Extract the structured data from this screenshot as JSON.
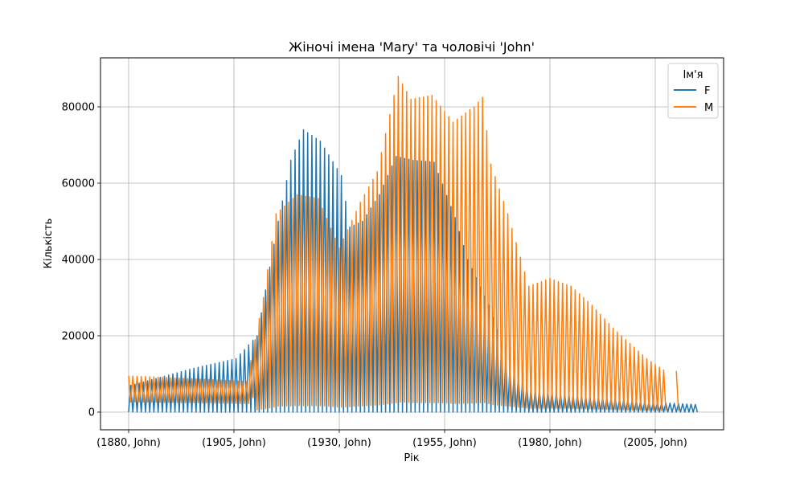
{
  "chart_data": {
    "type": "line",
    "title": "Жіночі імена 'Mary' та чоловічі 'John'",
    "xlabel": "Рік",
    "ylabel": "Кількість",
    "grid": true,
    "legend": {
      "title": "Ім'я",
      "placement": "top-right"
    },
    "x_tick_labels": [
      "(1880, John)",
      "(1905, John)",
      "(1930, John)",
      "(1955, John)",
      "(1980, John)",
      "(2005, John)"
    ],
    "x_tick_years": [
      1880,
      1905,
      1930,
      1955,
      1980,
      2005
    ],
    "ylim": [
      -4000,
      92000
    ],
    "y_ticks": [
      0,
      20000,
      40000,
      60000,
      80000
    ],
    "x_range": [
      1880,
      2014
    ],
    "series": [
      {
        "name": "F",
        "color": "#1f77b4",
        "description": "oscillating between 0 and the count of 'Mary' for each year",
        "year_values": [
          [
            1880,
            7000
          ],
          [
            1895,
            11500
          ],
          [
            1905,
            14000
          ],
          [
            1910,
            20000
          ],
          [
            1915,
            50000
          ],
          [
            1918,
            66000
          ],
          [
            1921,
            74000
          ],
          [
            1925,
            71000
          ],
          [
            1930,
            62000
          ],
          [
            1932,
            48500
          ],
          [
            1935,
            50000
          ],
          [
            1939,
            57000
          ],
          [
            1943,
            67000
          ],
          [
            1947,
            66000
          ],
          [
            1952,
            65500
          ],
          [
            1957,
            51000
          ],
          [
            1960,
            40000
          ],
          [
            1965,
            28000
          ],
          [
            1970,
            12000
          ],
          [
            1975,
            6000
          ],
          [
            1985,
            4500
          ],
          [
            1995,
            3500
          ],
          [
            2005,
            2500
          ],
          [
            2014,
            2000
          ]
        ]
      },
      {
        "name": "M",
        "color": "#ff7f0e",
        "description": "oscillating between a low value and the count of 'John' for each year",
        "year_values": [
          [
            1880,
            9500
          ],
          [
            1890,
            9000
          ],
          [
            1900,
            8500
          ],
          [
            1908,
            8000
          ],
          [
            1912,
            30000
          ],
          [
            1915,
            52000
          ],
          [
            1920,
            57000
          ],
          [
            1925,
            56000
          ],
          [
            1930,
            43000
          ],
          [
            1935,
            55000
          ],
          [
            1939,
            63000
          ],
          [
            1944,
            88000
          ],
          [
            1947,
            82000
          ],
          [
            1952,
            83000
          ],
          [
            1957,
            76000
          ],
          [
            1962,
            80000
          ],
          [
            1964,
            82500
          ],
          [
            1966,
            65000
          ],
          [
            1970,
            52000
          ],
          [
            1975,
            33000
          ],
          [
            1980,
            35000
          ],
          [
            1985,
            33000
          ],
          [
            1990,
            28000
          ],
          [
            1995,
            22000
          ],
          [
            2000,
            17000
          ],
          [
            2003,
            14000
          ],
          [
            2007,
            11000
          ],
          [
            2010,
            10800
          ]
        ],
        "gap_years": [
          2008,
          2009
        ]
      }
    ]
  }
}
